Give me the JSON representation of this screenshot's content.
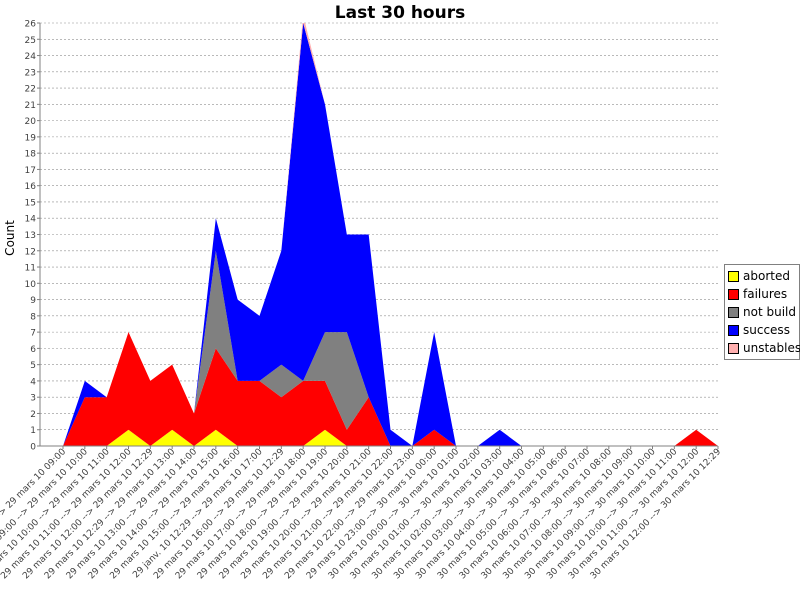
{
  "chart_data": {
    "type": "area",
    "title": "Last 30 hours",
    "xlabel": "",
    "ylabel": "Count",
    "ylim": [
      0,
      26
    ],
    "yticks": [
      0,
      1,
      2,
      3,
      4,
      5,
      6,
      7,
      8,
      9,
      10,
      11,
      12,
      13,
      14,
      15,
      16,
      17,
      18,
      19,
      20,
      21,
      22,
      23,
      24,
      25,
      26
    ],
    "grid": true,
    "stacked": true,
    "legend_position": "right",
    "categories": [
      "29 mars 10 08:00 --> 29 mars 10 09:00",
      "29 mars 10 09:00 --> 29 mars 10 10:00",
      "29 mars 10 10:00 --> 29 mars 10 11:00",
      "29 mars 10 11:00 --> 29 mars 10 12:00",
      "29 mars 10 12:00 --> 29 mars 10 12:29",
      "29 mars 10 12:29 --> 29 mars 10 13:00",
      "29 mars 10 13:00 --> 29 mars 10 14:00",
      "29 mars 10 14:00 --> 29 mars 10 15:00",
      "29 mars 10 15:00 --> 29 mars 10 16:00",
      "29 janv. 10 12:29 --> 29 mars 10 17:00",
      "29 mars 10 16:00 --> 29 mars 10 12:29",
      "29 mars 10 17:00 --> 29 mars 10 18:00",
      "29 mars 10 18:00 --> 29 mars 10 19:00",
      "29 mars 10 19:00 --> 29 mars 10 20:00",
      "29 mars 10 20:00 --> 29 mars 10 21:00",
      "29 mars 10 21:00 --> 29 mars 10 22:00",
      "29 mars 10 22:00 --> 29 mars 10 23:00",
      "29 mars 10 23:00 --> 30 mars 10 00:00",
      "30 mars 10 00:00 --> 30 mars 10 01:00",
      "30 mars 10 01:00 --> 30 mars 10 02:00",
      "30 mars 10 02:00 --> 30 mars 10 03:00",
      "30 mars 10 03:00 --> 30 mars 10 04:00",
      "30 mars 10 04:00 --> 30 mars 10 05:00",
      "30 mars 10 05:00 --> 30 mars 10 06:00",
      "30 mars 10 06:00 --> 30 mars 10 07:00",
      "30 mars 10 07:00 --> 30 mars 10 08:00",
      "30 mars 10 08:00 --> 30 mars 10 09:00",
      "30 mars 10 09:00 --> 30 mars 10 10:00",
      "30 mars 10 10:00 --> 30 mars 10 11:00",
      "30 mars 10 11:00 --> 30 mars 10 12:00",
      "30 mars 10 12:00 --> 30 mars 10 12:29"
    ],
    "series": [
      {
        "name": "aborted",
        "color": "#ffff00",
        "values": [
          0,
          0,
          0,
          1,
          0,
          1,
          0,
          1,
          0,
          0,
          0,
          0,
          1,
          0,
          0,
          0,
          0,
          0,
          0,
          0,
          0,
          0,
          0,
          0,
          0,
          0,
          0,
          0,
          0,
          0,
          0
        ]
      },
      {
        "name": "failures",
        "color": "#ff0000",
        "values": [
          0,
          3,
          3,
          6,
          4,
          4,
          2,
          5,
          4,
          4,
          3,
          4,
          3,
          1,
          3,
          0,
          0,
          1,
          0,
          0,
          0,
          0,
          0,
          0,
          0,
          0,
          0,
          0,
          0,
          1,
          0
        ]
      },
      {
        "name": "not build",
        "color": "#808080",
        "values": [
          0,
          0,
          0,
          0,
          0,
          0,
          0,
          6,
          0,
          0,
          2,
          0,
          3,
          6,
          0,
          0,
          0,
          0,
          0,
          0,
          0,
          0,
          0,
          0,
          0,
          0,
          0,
          0,
          0,
          0,
          0
        ]
      },
      {
        "name": "success",
        "color": "#0000ff",
        "values": [
          0,
          1,
          0,
          0,
          0,
          0,
          0,
          2,
          5,
          4,
          7,
          22,
          14,
          6,
          10,
          1,
          0,
          6,
          0,
          0,
          1,
          0,
          0,
          0,
          0,
          0,
          0,
          0,
          0,
          0,
          0
        ]
      },
      {
        "name": "unstables",
        "color": "#ffafaf",
        "values": [
          0,
          0,
          0,
          0,
          0,
          0,
          0,
          0,
          0,
          0,
          0,
          1,
          0,
          0,
          0,
          0,
          0,
          0,
          0,
          0,
          0,
          0,
          0,
          0,
          0,
          0,
          0,
          0,
          0,
          0,
          0
        ]
      }
    ]
  }
}
